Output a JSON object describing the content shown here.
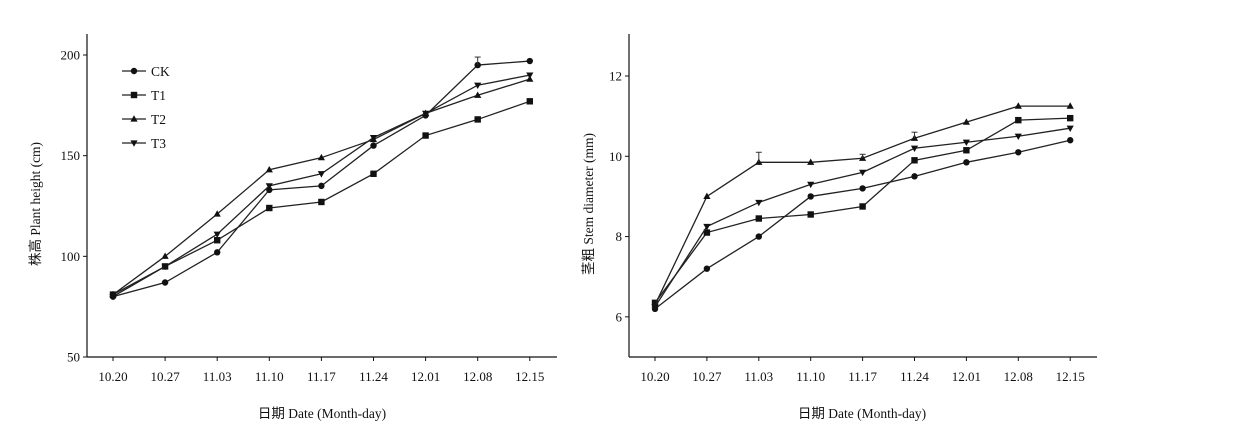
{
  "chart_data": [
    {
      "type": "line",
      "title": "",
      "xlabel": "日期 Date (Month-day)",
      "ylabel": "株高 Plant height (cm)",
      "categories": [
        "10.20",
        "10.27",
        "11.03",
        "11.10",
        "11.17",
        "11.24",
        "12.01",
        "12.08",
        "12.15"
      ],
      "ylim": [
        50,
        210
      ],
      "yticks": [
        50,
        100,
        150,
        200
      ],
      "legend": "top-left",
      "series": [
        {
          "name": "CK",
          "marker": "circle",
          "values": [
            80,
            87,
            102,
            133,
            135,
            155,
            170,
            195,
            197
          ]
        },
        {
          "name": "T1",
          "marker": "square",
          "values": [
            81,
            95,
            108,
            124,
            127,
            141,
            160,
            168,
            177
          ]
        },
        {
          "name": "T2",
          "marker": "triangle-up",
          "values": [
            81,
            100,
            121,
            143,
            149,
            158,
            171,
            180,
            188
          ]
        },
        {
          "name": "T3",
          "marker": "triangle-down",
          "values": [
            80,
            95,
            111,
            135,
            141,
            159,
            171,
            185,
            190
          ]
        }
      ]
    },
    {
      "type": "line",
      "title": "",
      "xlabel": "日期 Date (Month-day)",
      "ylabel": "茎粗 Stem diameter (mm)",
      "categories": [
        "10.20",
        "10.27",
        "11.03",
        "11.10",
        "11.17",
        "11.24",
        "12.01",
        "12.08",
        "12.15"
      ],
      "ylim": [
        5,
        13
      ],
      "yticks": [
        6,
        8,
        10,
        12
      ],
      "series": [
        {
          "name": "CK",
          "marker": "circle",
          "values": [
            6.2,
            7.2,
            8.0,
            9.0,
            9.2,
            9.5,
            9.85,
            10.1,
            10.4
          ]
        },
        {
          "name": "T1",
          "marker": "square",
          "values": [
            6.35,
            8.1,
            8.45,
            8.55,
            8.75,
            9.9,
            10.15,
            10.9,
            10.95
          ]
        },
        {
          "name": "T2",
          "marker": "triangle-up",
          "values": [
            6.3,
            9.0,
            9.85,
            9.85,
            9.95,
            10.45,
            10.85,
            11.25,
            11.25
          ]
        },
        {
          "name": "T3",
          "marker": "triangle-down",
          "values": [
            6.25,
            8.25,
            8.85,
            9.3,
            9.6,
            10.2,
            10.35,
            10.5,
            10.7
          ]
        }
      ]
    }
  ]
}
